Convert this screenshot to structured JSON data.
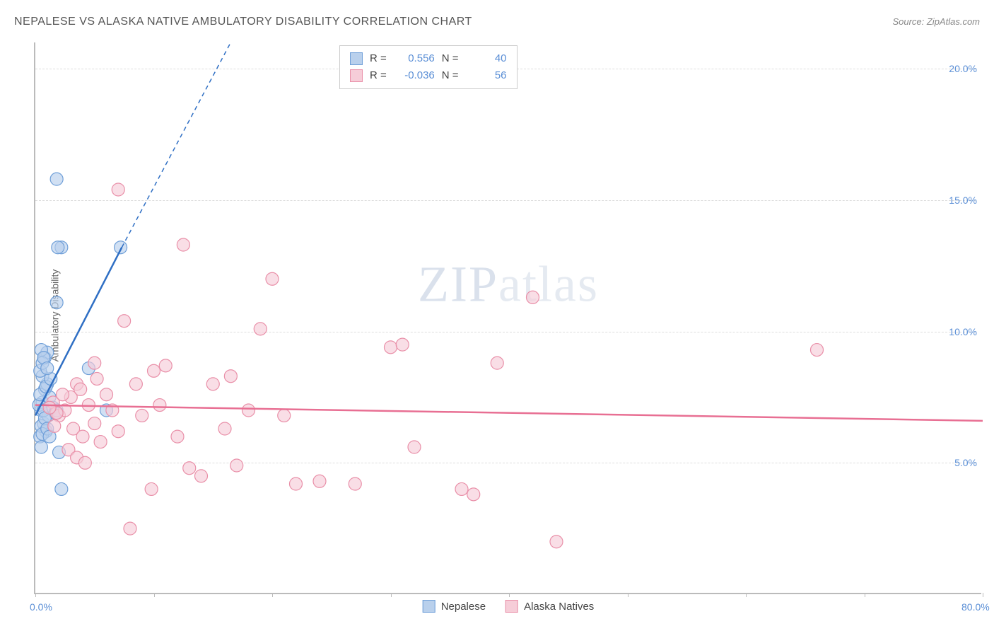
{
  "title": "NEPALESE VS ALASKA NATIVE AMBULATORY DISABILITY CORRELATION CHART",
  "source": "Source: ZipAtlas.com",
  "y_axis_label": "Ambulatory Disability",
  "watermark_bold": "ZIP",
  "watermark_thin": "atlas",
  "chart": {
    "type": "scatter",
    "xlim": [
      0,
      80
    ],
    "ylim": [
      0,
      21
    ],
    "x_ticks": [
      0,
      10,
      20,
      30,
      40,
      50,
      60,
      70,
      80
    ],
    "x_tick_labels": {
      "0": "0.0%",
      "80": "80.0%"
    },
    "y_ticks": [
      5,
      10,
      15,
      20
    ],
    "y_tick_labels": {
      "5": "5.0%",
      "10": "10.0%",
      "15": "15.0%",
      "20": "20.0%"
    },
    "background_color": "#ffffff",
    "grid_color": "#dddddd",
    "axis_color": "#bbbbbb",
    "tick_label_color": "#5b8fd6",
    "title_color": "#555555",
    "title_fontsize": 16,
    "label_fontsize": 14,
    "series": [
      {
        "name": "Nepalese",
        "marker_fill": "#b9d0ec",
        "marker_stroke": "#6f9fd8",
        "marker_radius": 9,
        "trend_color": "#2f6fc4",
        "trend_width": 2.5,
        "trend_solid": {
          "x1": 0,
          "y1": 6.8,
          "x2": 7.3,
          "y2": 13.2
        },
        "trend_dashed": {
          "x1": 7.3,
          "y1": 13.2,
          "x2": 16.5,
          "y2": 21.0
        },
        "stats": {
          "R": "0.556",
          "N": "40"
        },
        "points": [
          [
            0.5,
            7.0
          ],
          [
            0.6,
            7.3
          ],
          [
            0.7,
            6.5
          ],
          [
            0.8,
            7.8
          ],
          [
            0.9,
            6.2
          ],
          [
            1.0,
            8.0
          ],
          [
            1.1,
            6.8
          ],
          [
            1.2,
            7.5
          ],
          [
            0.4,
            6.0
          ],
          [
            0.5,
            5.6
          ],
          [
            0.6,
            8.3
          ],
          [
            0.8,
            9.0
          ],
          [
            1.0,
            9.2
          ],
          [
            0.3,
            7.2
          ],
          [
            0.4,
            7.6
          ],
          [
            0.7,
            7.0
          ],
          [
            0.9,
            7.9
          ],
          [
            1.3,
            8.2
          ],
          [
            1.5,
            7.1
          ],
          [
            1.7,
            6.9
          ],
          [
            0.5,
            6.4
          ],
          [
            0.6,
            6.1
          ],
          [
            0.8,
            6.7
          ],
          [
            1.0,
            6.3
          ],
          [
            1.2,
            6.0
          ],
          [
            0.4,
            8.5
          ],
          [
            0.6,
            8.8
          ],
          [
            2.0,
            5.4
          ],
          [
            2.2,
            4.0
          ],
          [
            1.8,
            7.0
          ],
          [
            2.2,
            13.2
          ],
          [
            7.2,
            13.2
          ],
          [
            6.0,
            7.0
          ],
          [
            4.5,
            8.6
          ],
          [
            1.8,
            11.1
          ],
          [
            1.9,
            13.2
          ],
          [
            1.8,
            15.8
          ],
          [
            0.5,
            9.3
          ],
          [
            0.7,
            9.0
          ],
          [
            1.0,
            8.6
          ]
        ]
      },
      {
        "name": "Alaska Natives",
        "marker_fill": "#f6cdd8",
        "marker_stroke": "#e98fa8",
        "marker_radius": 9,
        "trend_color": "#e86f93",
        "trend_width": 2.5,
        "trend_solid": {
          "x1": 0,
          "y1": 7.2,
          "x2": 80,
          "y2": 6.6
        },
        "stats": {
          "R": "-0.036",
          "N": "56"
        },
        "points": [
          [
            1.5,
            7.3
          ],
          [
            2.0,
            6.8
          ],
          [
            2.5,
            7.0
          ],
          [
            3.0,
            7.5
          ],
          [
            3.2,
            6.3
          ],
          [
            3.5,
            8.0
          ],
          [
            3.8,
            7.8
          ],
          [
            4.0,
            6.0
          ],
          [
            4.5,
            7.2
          ],
          [
            5.0,
            6.5
          ],
          [
            5.2,
            8.2
          ],
          [
            5.5,
            5.8
          ],
          [
            6.0,
            7.6
          ],
          [
            6.5,
            7.0
          ],
          [
            7.0,
            6.2
          ],
          [
            7.5,
            10.4
          ],
          [
            8.0,
            2.5
          ],
          [
            8.5,
            8.0
          ],
          [
            9.0,
            6.8
          ],
          [
            9.8,
            4.0
          ],
          [
            10.0,
            8.5
          ],
          [
            10.5,
            7.2
          ],
          [
            11.0,
            8.7
          ],
          [
            12.0,
            6.0
          ],
          [
            12.5,
            13.3
          ],
          [
            13.0,
            4.8
          ],
          [
            14.0,
            4.5
          ],
          [
            15.0,
            8.0
          ],
          [
            16.0,
            6.3
          ],
          [
            16.5,
            8.3
          ],
          [
            17.0,
            4.9
          ],
          [
            18.0,
            7.0
          ],
          [
            19.0,
            10.1
          ],
          [
            20.0,
            12.0
          ],
          [
            21.0,
            6.8
          ],
          [
            22.0,
            4.2
          ],
          [
            24.0,
            4.3
          ],
          [
            27.0,
            4.2
          ],
          [
            30.0,
            9.4
          ],
          [
            31.0,
            9.5
          ],
          [
            32.0,
            5.6
          ],
          [
            36.0,
            4.0
          ],
          [
            37.0,
            3.8
          ],
          [
            39.0,
            8.8
          ],
          [
            42.0,
            11.3
          ],
          [
            44.0,
            2.0
          ],
          [
            66.0,
            9.3
          ],
          [
            7.0,
            15.4
          ],
          [
            5.0,
            8.8
          ],
          [
            2.8,
            5.5
          ],
          [
            3.5,
            5.2
          ],
          [
            4.2,
            5.0
          ],
          [
            1.8,
            6.9
          ],
          [
            2.3,
            7.6
          ],
          [
            1.2,
            7.1
          ],
          [
            1.6,
            6.4
          ]
        ]
      }
    ],
    "legend_bottom": [
      {
        "label": "Nepalese",
        "fill": "#b9d0ec",
        "stroke": "#6f9fd8"
      },
      {
        "label": "Alaska Natives",
        "fill": "#f6cdd8",
        "stroke": "#e98fa8"
      }
    ],
    "stat_labels": {
      "r": "R =",
      "n": "N ="
    }
  }
}
